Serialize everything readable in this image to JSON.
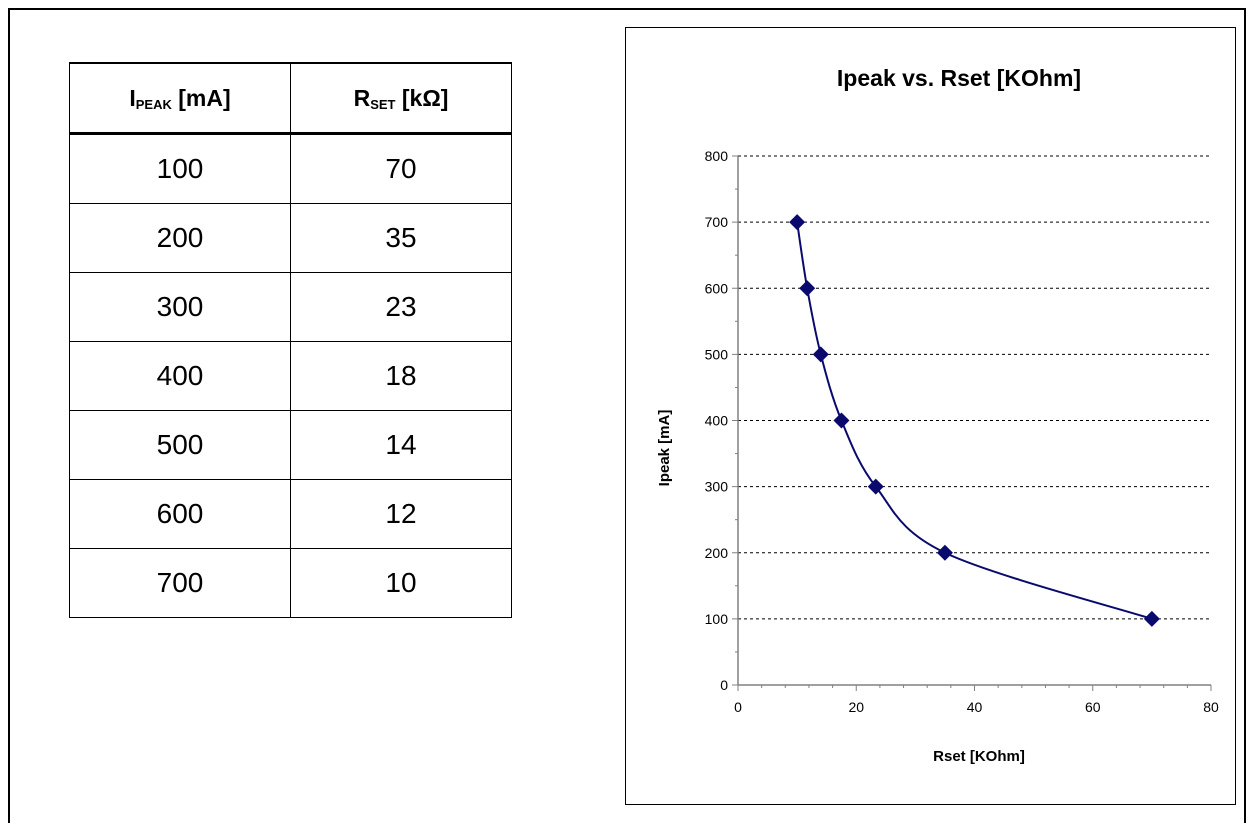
{
  "table": {
    "header_i_main": "I",
    "header_i_sub": "PEAK",
    "header_i_unit": " [mA]",
    "header_r_main": "R",
    "header_r_sub": "SET",
    "header_r_unit": " [kΩ]",
    "rows": [
      {
        "ipeak": "100",
        "rset": "70"
      },
      {
        "ipeak": "200",
        "rset": "35"
      },
      {
        "ipeak": "300",
        "rset": "23"
      },
      {
        "ipeak": "400",
        "rset": "18"
      },
      {
        "ipeak": "500",
        "rset": "14"
      },
      {
        "ipeak": "600",
        "rset": "12"
      },
      {
        "ipeak": "700",
        "rset": "10"
      }
    ]
  },
  "chart_data": {
    "type": "line",
    "title": "Ipeak vs. Rset [KOhm]",
    "xlabel": "Rset [KOhm]",
    "ylabel": "Ipeak [mA]",
    "xlim": [
      0,
      80
    ],
    "ylim": [
      0,
      800
    ],
    "xticks": [
      0,
      20,
      40,
      60,
      80
    ],
    "yticks": [
      0,
      100,
      200,
      300,
      400,
      500,
      600,
      700,
      800
    ],
    "grid": "horizontal dashed",
    "series_color": "#0a0a6e",
    "series": [
      {
        "points": [
          {
            "x": 70,
            "y": 100
          },
          {
            "x": 35,
            "y": 200
          },
          {
            "x": 23.3,
            "y": 300
          },
          {
            "x": 17.5,
            "y": 400
          },
          {
            "x": 14,
            "y": 500
          },
          {
            "x": 11.7,
            "y": 600
          },
          {
            "x": 10,
            "y": 700
          }
        ]
      }
    ]
  }
}
